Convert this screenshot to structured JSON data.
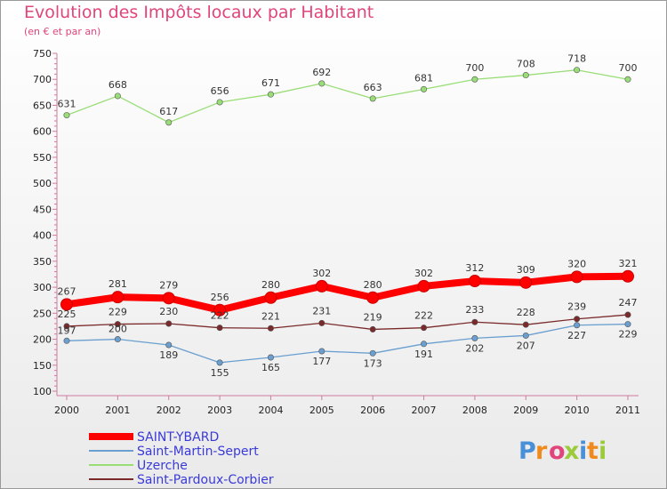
{
  "chart_data": {
    "type": "line",
    "title": "Evolution des Impôts locaux par Habitant",
    "subtitle": "(en € et par an)",
    "x": [
      "2000",
      "2001",
      "2002",
      "2003",
      "2004",
      "2005",
      "2006",
      "2007",
      "2008",
      "2009",
      "2010",
      "2011"
    ],
    "ylim": [
      100,
      750
    ],
    "ytick_step": 50,
    "grid": false,
    "legend_position": "bottom-left",
    "series": [
      {
        "name": "SAINT-YBARD",
        "color": "#ff0000",
        "emphasis": true,
        "values": [
          267,
          281,
          279,
          256,
          280,
          302,
          280,
          302,
          312,
          309,
          320,
          321
        ]
      },
      {
        "name": "Saint-Martin-Sepert",
        "color": "#6a9fd0",
        "values": [
          197,
          200,
          189,
          155,
          165,
          177,
          173,
          191,
          202,
          207,
          227,
          229
        ]
      },
      {
        "name": "Uzerche",
        "color": "#99dd77",
        "values": [
          631,
          668,
          617,
          656,
          671,
          692,
          663,
          681,
          700,
          708,
          718,
          700
        ]
      },
      {
        "name": "Saint-Pardoux-Corbier",
        "color": "#7a2a2a",
        "values": [
          225,
          229,
          230,
          222,
          221,
          231,
          219,
          222,
          233,
          228,
          239,
          247
        ]
      }
    ]
  },
  "logo": {
    "text": "Proxiti",
    "colors": [
      "#4a90d9",
      "#f08a1c",
      "#e0457b",
      "#9bcb3b",
      "#4a90d9",
      "#f08a1c",
      "#9bcb3b"
    ]
  }
}
